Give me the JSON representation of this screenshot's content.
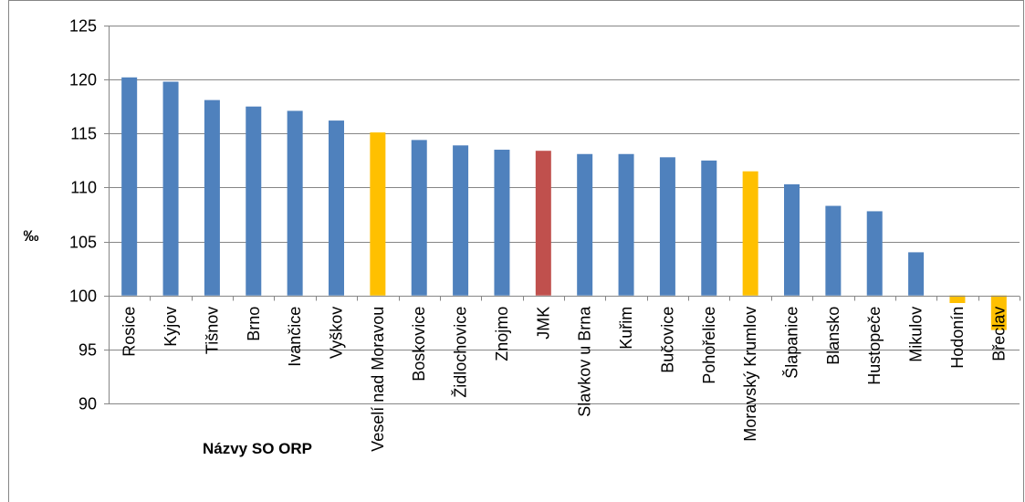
{
  "chart_data": {
    "type": "bar",
    "title": "",
    "xlabel": "Názvy SO ORP",
    "ylabel": "‰",
    "ylim": [
      90,
      125
    ],
    "yticks": [
      90,
      95,
      100,
      105,
      110,
      115,
      120,
      125
    ],
    "baseline": 100,
    "grid": true,
    "categories": [
      "Rosice",
      "Kyjov",
      "Tišnov",
      "Brno",
      "Ivančice",
      "Vyškov",
      "Veselí nad Moravou",
      "Boskovice",
      "Židlochovice",
      "Znojmo",
      "JMK",
      "Slavkov u Brna",
      "Kuřim",
      "Bučovice",
      "Pohořelice",
      "Moravský Krumlov",
      "Šlapanice",
      "Blansko",
      "Hustopeče",
      "Mikulov",
      "Hodonín",
      "Břeclav"
    ],
    "values": [
      120.2,
      119.8,
      118.1,
      117.5,
      117.1,
      116.2,
      115.1,
      114.4,
      113.9,
      113.5,
      113.4,
      113.1,
      113.1,
      112.8,
      112.5,
      111.5,
      110.3,
      108.3,
      107.8,
      104.0,
      99.3,
      96.8
    ],
    "colors": [
      "#4f81bd",
      "#4f81bd",
      "#4f81bd",
      "#4f81bd",
      "#4f81bd",
      "#4f81bd",
      "#ffc000",
      "#4f81bd",
      "#4f81bd",
      "#4f81bd",
      "#c0504d",
      "#4f81bd",
      "#4f81bd",
      "#4f81bd",
      "#4f81bd",
      "#ffc000",
      "#4f81bd",
      "#4f81bd",
      "#4f81bd",
      "#4f81bd",
      "#ffc000",
      "#ffc000"
    ]
  }
}
